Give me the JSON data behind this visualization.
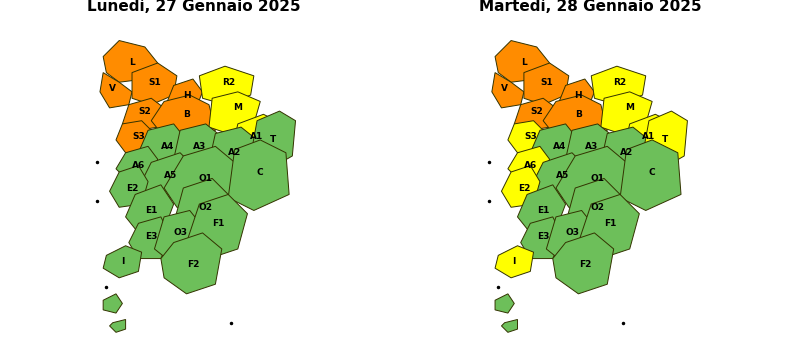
{
  "title_left": "Lunedì, 27 Gennaio 2025",
  "title_right": "Martedì, 28 Gennaio 2025",
  "title_fontsize": 11,
  "bg_color": "#ffffff",
  "border_color": "#333300",
  "border_lw": 0.7,
  "orange": "#FF8C00",
  "yellow": "#FFFF00",
  "green": "#6DBF5A",
  "label_fontsize": 6.5,
  "colors_left": {
    "L": "#FF8C00",
    "V": "#FF8C00",
    "S1": "#FF8C00",
    "S2": "#FF8C00",
    "S3": "#FF8C00",
    "H": "#FF8C00",
    "B": "#FF8C00",
    "R2": "#FFFF00",
    "M": "#FFFF00",
    "A1": "#FFFF00",
    "A4": "#6DBF5A",
    "A6": "#6DBF5A",
    "A3": "#6DBF5A",
    "A2": "#6DBF5A",
    "T": "#6DBF5A",
    "A5": "#6DBF5A",
    "E2": "#6DBF5A",
    "O1": "#6DBF5A",
    "C": "#6DBF5A",
    "E1": "#6DBF5A",
    "O2": "#6DBF5A",
    "E3": "#6DBF5A",
    "O3": "#6DBF5A",
    "F1": "#6DBF5A",
    "F2": "#6DBF5A",
    "ELBA": "#6DBF5A",
    "ISL1": "#6DBF5A",
    "ISL2": "#6DBF5A"
  },
  "colors_right": {
    "L": "#FF8C00",
    "V": "#FF8C00",
    "S1": "#FF8C00",
    "S2": "#FF8C00",
    "S3": "#FFFF00",
    "H": "#FF8C00",
    "B": "#FF8C00",
    "R2": "#FFFF00",
    "M": "#FFFF00",
    "A1": "#FFFF00",
    "A4": "#6DBF5A",
    "A6": "#FFFF00",
    "A3": "#6DBF5A",
    "A2": "#6DBF5A",
    "T": "#FFFF00",
    "A5": "#6DBF5A",
    "E2": "#FFFF00",
    "O1": "#6DBF5A",
    "C": "#6DBF5A",
    "E1": "#6DBF5A",
    "O2": "#6DBF5A",
    "E3": "#6DBF5A",
    "O3": "#6DBF5A",
    "F1": "#6DBF5A",
    "F2": "#6DBF5A",
    "ELBA": "#FFFF00",
    "ISL1": "#6DBF5A",
    "ISL2": "#6DBF5A"
  }
}
